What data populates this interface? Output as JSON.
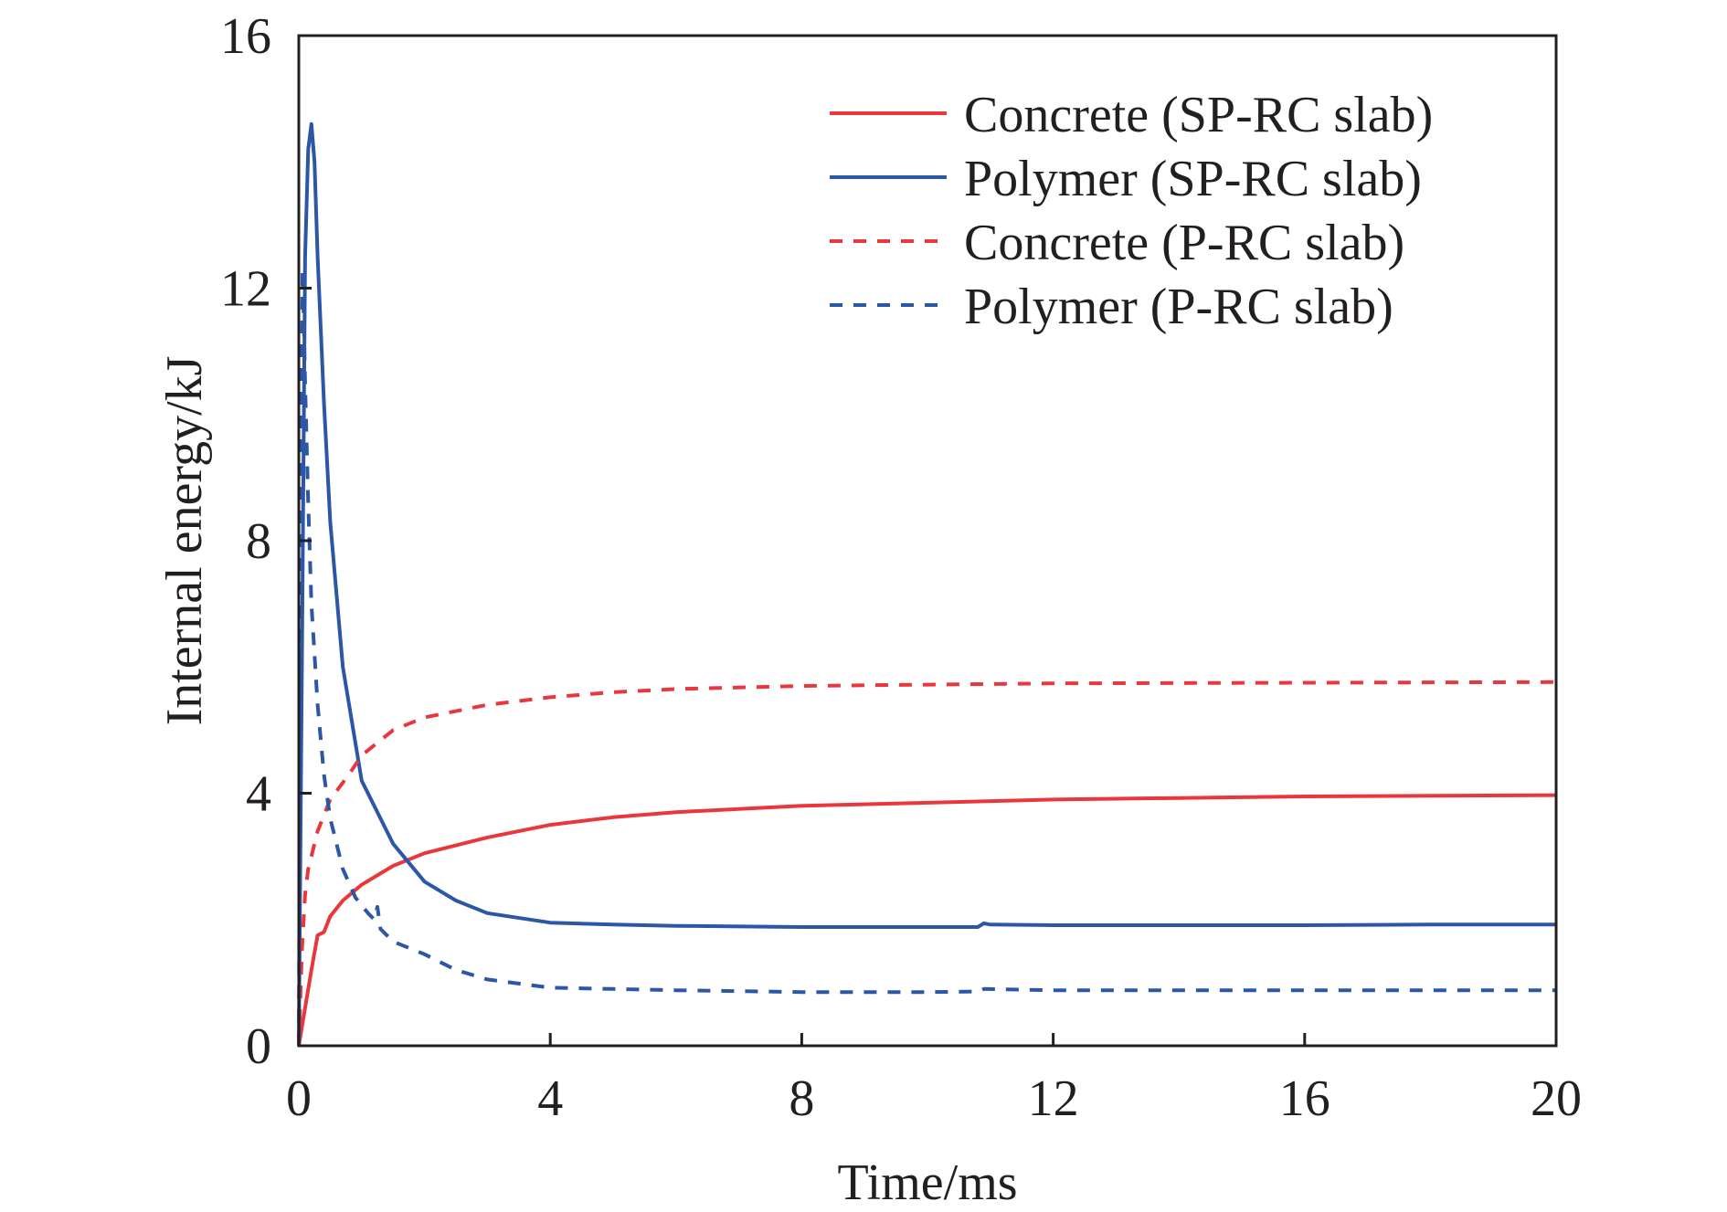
{
  "chart_data": {
    "type": "line",
    "title": "",
    "xlabel": "Time/ms",
    "ylabel": "Internal energy/kJ",
    "xlim": [
      0,
      20
    ],
    "ylim": [
      0,
      16
    ],
    "xticks": [
      0,
      4,
      8,
      12,
      16,
      20
    ],
    "yticks": [
      0,
      4,
      8,
      12,
      16
    ],
    "grid": false,
    "legend_position": "top-right",
    "series": [
      {
        "name": "Concrete (SP-RC slab)",
        "color": "#e8383d",
        "style": "solid",
        "x": [
          0,
          0.1,
          0.2,
          0.3,
          0.4,
          0.5,
          0.7,
          1,
          1.5,
          2,
          3,
          4,
          5,
          6,
          8,
          10,
          12,
          16,
          20
        ],
        "y": [
          0,
          0.6,
          1.2,
          1.75,
          1.8,
          2.05,
          2.3,
          2.55,
          2.85,
          3.05,
          3.3,
          3.5,
          3.62,
          3.7,
          3.8,
          3.85,
          3.9,
          3.95,
          3.97
        ]
      },
      {
        "name": "Polymer (SP-RC slab)",
        "color": "#2c56a6",
        "style": "solid",
        "x": [
          0,
          0.05,
          0.1,
          0.15,
          0.2,
          0.25,
          0.3,
          0.4,
          0.5,
          0.7,
          1,
          1.5,
          2,
          2.5,
          3,
          4,
          5,
          6,
          8,
          10,
          10.8,
          10.9,
          11,
          12,
          14,
          16,
          18,
          20
        ],
        "y": [
          0,
          6,
          12.5,
          14.2,
          14.6,
          14,
          12.5,
          10.2,
          8.3,
          6,
          4.2,
          3.2,
          2.6,
          2.3,
          2.1,
          1.95,
          1.92,
          1.9,
          1.88,
          1.88,
          1.88,
          1.94,
          1.92,
          1.91,
          1.91,
          1.91,
          1.92,
          1.92
        ]
      },
      {
        "name": "Concrete (P-RC slab)",
        "color": "#e8383d",
        "style": "dashed",
        "x": [
          0,
          0.05,
          0.1,
          0.15,
          0.2,
          0.3,
          0.5,
          0.8,
          1,
          1.5,
          2,
          3,
          4,
          5,
          6,
          8,
          10,
          12,
          16,
          20
        ],
        "y": [
          0,
          1.5,
          2.4,
          2.8,
          3.0,
          3.4,
          3.9,
          4.3,
          4.6,
          5.0,
          5.2,
          5.4,
          5.52,
          5.6,
          5.65,
          5.7,
          5.72,
          5.74,
          5.75,
          5.76
        ]
      },
      {
        "name": "Polymer (P-RC slab)",
        "color": "#2c56a6",
        "style": "dashed",
        "x": [
          0,
          0.03,
          0.06,
          0.08,
          0.1,
          0.15,
          0.2,
          0.3,
          0.4,
          0.5,
          0.7,
          0.9,
          1.1,
          1.2,
          1.25,
          1.3,
          1.5,
          2,
          2.5,
          3,
          4,
          5,
          6,
          8,
          10,
          10.8,
          10.9,
          12,
          16,
          20
        ],
        "y": [
          0,
          8,
          12.3,
          11.5,
          10.5,
          8.6,
          7.0,
          5.4,
          4.3,
          3.6,
          2.8,
          2.35,
          2.1,
          2.0,
          2.2,
          1.85,
          1.65,
          1.45,
          1.2,
          1.05,
          0.92,
          0.9,
          0.88,
          0.85,
          0.85,
          0.86,
          0.9,
          0.88,
          0.88,
          0.88
        ]
      }
    ]
  }
}
